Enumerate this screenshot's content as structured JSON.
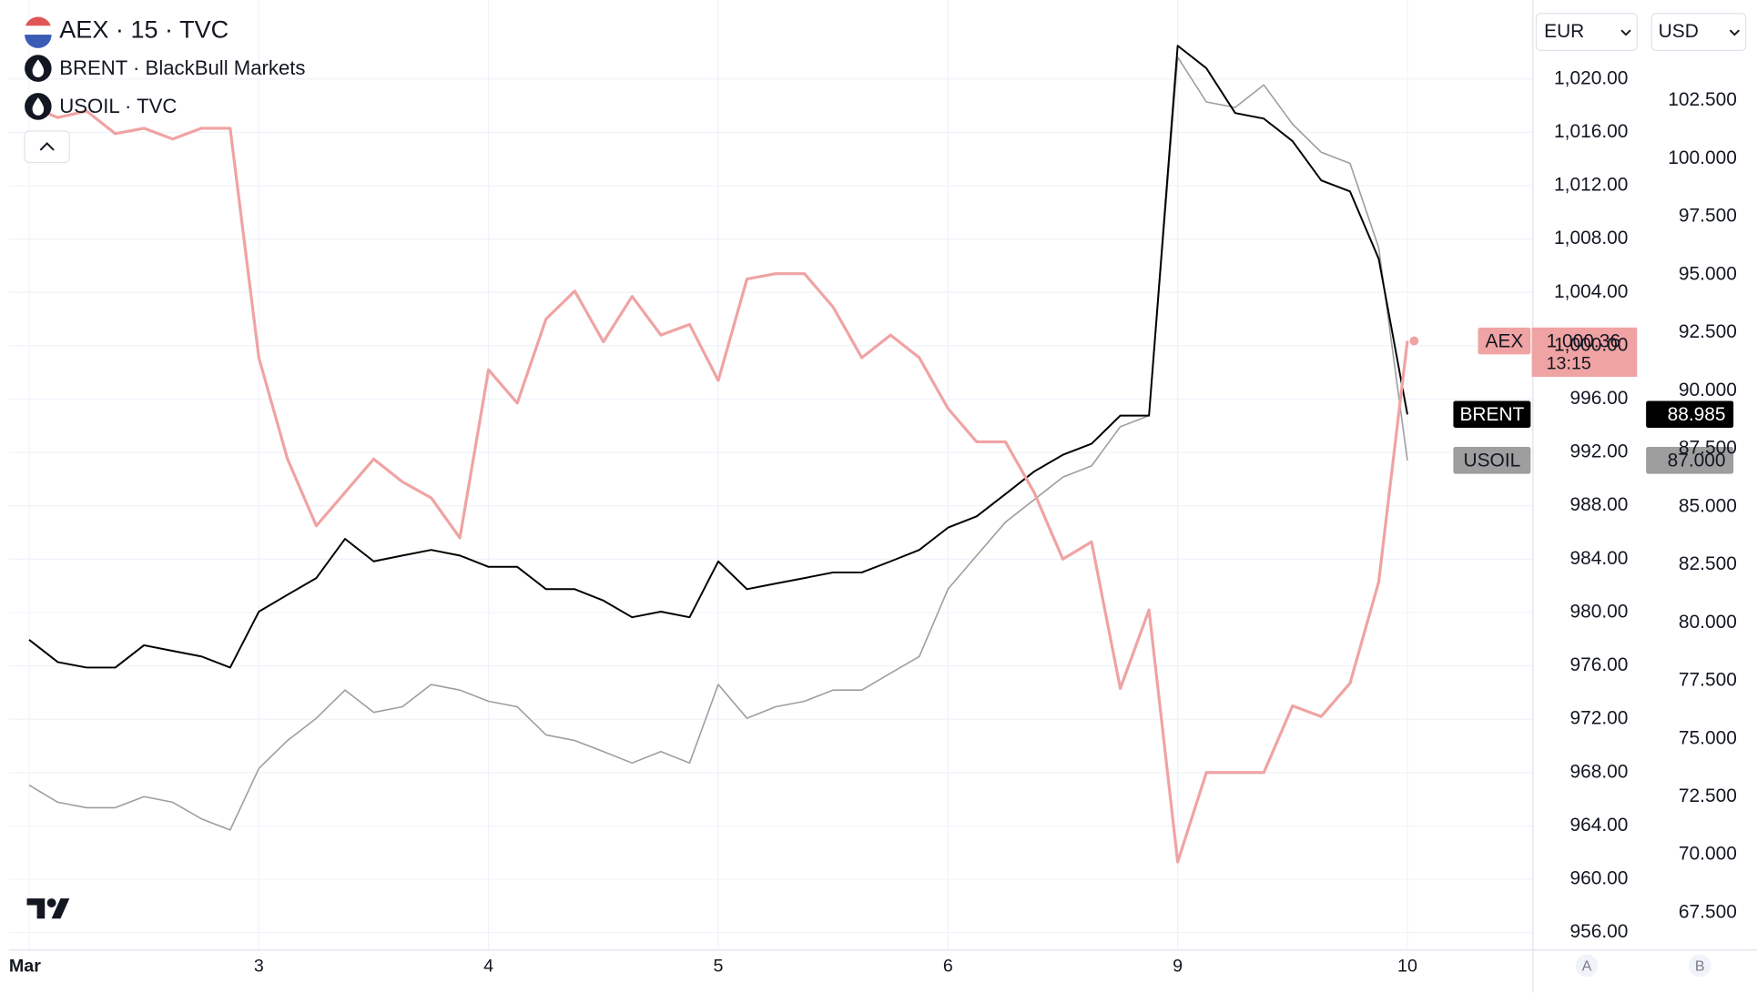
{
  "chart_data": {
    "type": "line",
    "categories": [
      "Mar",
      null,
      null,
      null,
      null,
      null,
      null,
      null,
      "3",
      null,
      null,
      null,
      null,
      null,
      null,
      null,
      "4",
      null,
      null,
      null,
      null,
      null,
      null,
      null,
      "5",
      null,
      null,
      null,
      null,
      null,
      null,
      null,
      "6",
      null,
      null,
      null,
      null,
      null,
      null,
      null,
      "9",
      null,
      null,
      null,
      null,
      null,
      null,
      null,
      "10"
    ],
    "ylim": [
      954.7,
      1025.5
    ],
    "yticks": [
      {
        "value": 956,
        "label": "956.00"
      },
      {
        "value": 960,
        "label": "960.00"
      },
      {
        "value": 964,
        "label": "964.00"
      },
      {
        "value": 968,
        "label": "968.00"
      },
      {
        "value": 972,
        "label": "972.00"
      },
      {
        "value": 976,
        "label": "976.00"
      },
      {
        "value": 980,
        "label": "980.00"
      },
      {
        "value": 984,
        "label": "984.00"
      },
      {
        "value": 988,
        "label": "988.00"
      },
      {
        "value": 992,
        "label": "992.00"
      },
      {
        "value": 996,
        "label": "996.00"
      },
      {
        "value": 1000,
        "label": "1,000.00"
      },
      {
        "value": 1004,
        "label": "1,004.00"
      },
      {
        "value": 1008,
        "label": "1,008.00"
      },
      {
        "value": 1012,
        "label": "1,012.00"
      },
      {
        "value": 1016,
        "label": "1,016.00"
      },
      {
        "value": 1020,
        "label": "1,020.00"
      }
    ],
    "y2lim": [
      65.9,
      106.6
    ],
    "y2ticks": [
      {
        "value": 67.5,
        "label": "67.500"
      },
      {
        "value": 70,
        "label": "70.000"
      },
      {
        "value": 72.5,
        "label": "72.500"
      },
      {
        "value": 75,
        "label": "75.000"
      },
      {
        "value": 77.5,
        "label": "77.500"
      },
      {
        "value": 80,
        "label": "80.000"
      },
      {
        "value": 82.5,
        "label": "82.500"
      },
      {
        "value": 85,
        "label": "85.000"
      },
      {
        "value": 87.5,
        "label": "87.500"
      },
      {
        "value": 90,
        "label": "90.000"
      },
      {
        "value": 92.5,
        "label": "92.500"
      },
      {
        "value": 95,
        "label": "95.000"
      },
      {
        "value": 97.5,
        "label": "97.500"
      },
      {
        "value": 100,
        "label": "100.000"
      },
      {
        "value": 102.5,
        "label": "102.500"
      }
    ],
    "grid": true,
    "currency_left": "EUR",
    "currency_right": "USD",
    "scale_buttons": [
      "A",
      "B"
    ],
    "series": [
      {
        "name": "AEX",
        "legend": "AEX · 15 · TVC",
        "color": "#f0a3a3",
        "last_label": "1,000.36",
        "countdown": "13:15",
        "values": [
          1018.0,
          1017.1,
          1017.6,
          1015.9,
          1016.3,
          1015.5,
          1016.3,
          1016.3,
          999.1,
          991.5,
          986.5,
          989.0,
          991.5,
          989.8,
          988.6,
          985.6,
          998.2,
          995.7,
          1002.0,
          1004.1,
          1000.3,
          1003.7,
          1000.8,
          1001.6,
          997.4,
          1005.0,
          1005.4,
          1005.4,
          1002.9,
          999.1,
          1000.8,
          999.1,
          995.3,
          992.8,
          992.8,
          989.0,
          984.0,
          985.3,
          974.3,
          980.2,
          961.3,
          968.0,
          968.0,
          968.0,
          973.0,
          972.2,
          974.7,
          982.3,
          1000.36
        ]
      },
      {
        "name": "BRENT",
        "legend": "BRENT · BlackBull Markets",
        "color": "#000000",
        "axis": "y2",
        "last_label": "88.985",
        "values": [
          79.27,
          78.31,
          78.07,
          78.07,
          79.03,
          78.79,
          78.55,
          78.07,
          80.48,
          81.21,
          81.93,
          83.62,
          82.65,
          82.9,
          83.14,
          82.9,
          82.41,
          82.41,
          81.45,
          81.45,
          80.96,
          80.24,
          80.48,
          80.24,
          82.65,
          81.45,
          81.69,
          81.93,
          82.17,
          82.17,
          82.65,
          83.14,
          84.1,
          84.59,
          85.55,
          86.52,
          87.24,
          87.72,
          88.93,
          88.93,
          104.87,
          103.9,
          101.97,
          101.73,
          100.76,
          99.07,
          98.59,
          95.69,
          88.985
        ]
      },
      {
        "name": "USOIL",
        "legend": "USOIL · TVC",
        "color": "#9e9e9e",
        "axis": "y2",
        "last_label": "87.000",
        "values": [
          73.0,
          72.27,
          72.03,
          72.03,
          72.51,
          72.27,
          71.55,
          71.07,
          73.72,
          74.93,
          75.89,
          77.1,
          76.14,
          76.38,
          77.34,
          77.1,
          76.62,
          76.38,
          75.17,
          74.93,
          74.45,
          73.96,
          74.45,
          73.96,
          77.34,
          75.89,
          76.38,
          76.62,
          77.1,
          77.1,
          77.83,
          78.55,
          81.45,
          82.9,
          84.34,
          85.31,
          86.28,
          86.76,
          88.45,
          88.93,
          104.38,
          102.45,
          102.21,
          103.18,
          101.49,
          100.28,
          99.8,
          96.17,
          87.0
        ]
      }
    ]
  }
}
